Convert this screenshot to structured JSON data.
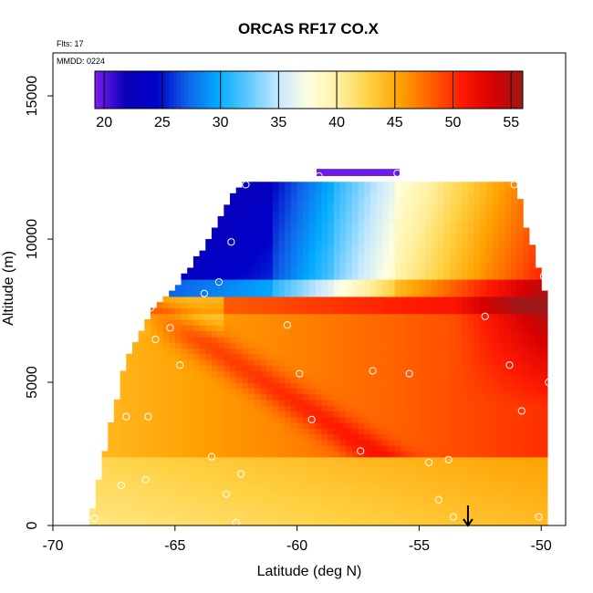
{
  "chart_data": {
    "type": "heatmap",
    "title": "ORCAS RF17 CO.X",
    "annotations": {
      "flights": "Flts: 17",
      "date": "MMDD: 0224"
    },
    "xlabel": "Latitude (deg N)",
    "ylabel": "Altitude (m)",
    "xlim": [
      -70,
      -49
    ],
    "ylim": [
      0,
      16500
    ],
    "x_ticks": [
      -70,
      -65,
      -60,
      -55,
      -50
    ],
    "x_tick_labels": [
      "-70",
      "-65",
      "-60",
      "-55",
      "-50"
    ],
    "y_ticks": [
      0,
      5000,
      10000,
      15000
    ],
    "y_tick_labels": [
      "0",
      "5000",
      "10000",
      "15000"
    ],
    "colorbar": {
      "min": 19.2,
      "max": 56,
      "ticks": [
        20,
        25,
        30,
        35,
        40,
        45,
        50,
        55
      ],
      "tick_labels": [
        "20",
        "25",
        "30",
        "35",
        "40",
        "45",
        "50",
        "55"
      ],
      "placement": "top inside plot",
      "colors": [
        "#7b1ff0",
        "#0a00b8",
        "#0000c8",
        "#1060e8",
        "#00aaff",
        "#5cc8ff",
        "#c6e8ff",
        "#ffffe0",
        "#fff0a0",
        "#ffd040",
        "#ffa000",
        "#ff6000",
        "#ff1a00",
        "#d80000",
        "#a01818"
      ]
    },
    "grid": false,
    "legend": "colorbar top",
    "field_shape": {
      "layers": [
        {
          "alt": 200,
          "x_min": -68.5,
          "x_max": -49.8
        },
        {
          "alt": 2000,
          "x_min": -68.0,
          "x_max": -49.8
        },
        {
          "alt": 4000,
          "x_min": -67.5,
          "x_max": -49.8
        },
        {
          "alt": 5800,
          "x_min": -67.0,
          "x_max": -49.8
        },
        {
          "alt": 7500,
          "x_min": -66.0,
          "x_max": -49.8
        },
        {
          "alt": 8300,
          "x_min": -65.0,
          "x_max": -49.9
        },
        {
          "alt": 9500,
          "x_min": -64.0,
          "x_max": -50.3
        },
        {
          "alt": 11000,
          "x_min": -63.0,
          "x_max": -50.8
        },
        {
          "alt": 12000,
          "x_min": -62.3,
          "x_max": -51.0
        }
      ],
      "top_strip": {
        "x_min": -59.2,
        "x_max": -55.8,
        "alt": 12200,
        "value": 19.5
      }
    },
    "field_values": {
      "low_altitude": 41,
      "mid_altitude_south": 44,
      "mid_altitude_north": 50,
      "north_core": 55,
      "upper_south_core": 24,
      "upper_middle": 33,
      "upper_north": 38
    },
    "flight_points": [
      {
        "x": -68.3,
        "y": 250
      },
      {
        "x": -67.2,
        "y": 1400
      },
      {
        "x": -66.2,
        "y": 1600
      },
      {
        "x": -67.0,
        "y": 3800
      },
      {
        "x": -66.1,
        "y": 3800
      },
      {
        "x": -63.5,
        "y": 2400
      },
      {
        "x": -62.9,
        "y": 1100
      },
      {
        "x": -62.3,
        "y": 1800
      },
      {
        "x": -62.5,
        "y": 100
      },
      {
        "x": -65.8,
        "y": 6500
      },
      {
        "x": -65.2,
        "y": 6900
      },
      {
        "x": -64.8,
        "y": 5600
      },
      {
        "x": -66.0,
        "y": 7600
      },
      {
        "x": -63.8,
        "y": 8100
      },
      {
        "x": -63.2,
        "y": 8500
      },
      {
        "x": -62.7,
        "y": 9900
      },
      {
        "x": -62.1,
        "y": 11900
      },
      {
        "x": -60.4,
        "y": 7000
      },
      {
        "x": -59.9,
        "y": 5300
      },
      {
        "x": -59.4,
        "y": 3700
      },
      {
        "x": -59.1,
        "y": 12200
      },
      {
        "x": -57.4,
        "y": 2600
      },
      {
        "x": -56.9,
        "y": 5400
      },
      {
        "x": -55.4,
        "y": 5300
      },
      {
        "x": -54.6,
        "y": 2200
      },
      {
        "x": -53.8,
        "y": 2300
      },
      {
        "x": -54.2,
        "y": 900
      },
      {
        "x": -53.6,
        "y": 300
      },
      {
        "x": -52.3,
        "y": 7300
      },
      {
        "x": -51.3,
        "y": 5600
      },
      {
        "x": -51.1,
        "y": 11900
      },
      {
        "x": -50.8,
        "y": 4000
      },
      {
        "x": -49.9,
        "y": 8700
      },
      {
        "x": -49.7,
        "y": 5000
      },
      {
        "x": -50.1,
        "y": 300
      },
      {
        "x": -55.9,
        "y": 12300
      }
    ],
    "arrow_marker": {
      "x": -53.0,
      "y_from": 700,
      "y_to": 0
    }
  }
}
